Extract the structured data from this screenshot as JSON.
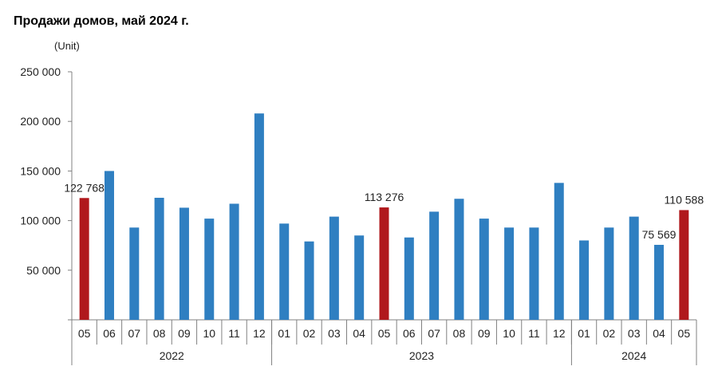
{
  "chart_data": {
    "type": "bar",
    "title": "Продажи домов, май 2024 г.",
    "unit_label": "(Unit)",
    "ylim": [
      0,
      250000
    ],
    "yticks": [
      0,
      50000,
      100000,
      150000,
      200000,
      250000
    ],
    "ytick_labels": [
      "",
      "50 000",
      "100 000",
      "150 000",
      "200 000",
      "250 000"
    ],
    "categories": [
      "05",
      "06",
      "07",
      "08",
      "09",
      "10",
      "11",
      "12",
      "01",
      "02",
      "03",
      "04",
      "05",
      "06",
      "07",
      "08",
      "09",
      "10",
      "11",
      "12",
      "01",
      "02",
      "03",
      "04",
      "05"
    ],
    "values": [
      122768,
      150000,
      93000,
      123000,
      113000,
      102000,
      117000,
      208000,
      97000,
      79000,
      104000,
      85000,
      113276,
      83000,
      109000,
      122000,
      102000,
      93000,
      93000,
      138000,
      80000,
      93000,
      104000,
      75569,
      110588
    ],
    "highlight": [
      true,
      false,
      false,
      false,
      false,
      false,
      false,
      false,
      false,
      false,
      false,
      false,
      true,
      false,
      false,
      false,
      false,
      false,
      false,
      false,
      false,
      false,
      false,
      false,
      true
    ],
    "data_labels": [
      {
        "index": 0,
        "text": "122 768"
      },
      {
        "index": 12,
        "text": "113 276"
      },
      {
        "index": 23,
        "text": "75 569"
      },
      {
        "index": 24,
        "text": "110 588"
      }
    ],
    "year_groups": [
      {
        "label": "2022",
        "start": 0,
        "end": 7
      },
      {
        "label": "2023",
        "start": 8,
        "end": 19
      },
      {
        "label": "2024",
        "start": 20,
        "end": 24
      }
    ],
    "colors": {
      "normal": "#2f7fc1",
      "highlight": "#b0181c",
      "axis": "#808080",
      "text": "#222222"
    }
  }
}
